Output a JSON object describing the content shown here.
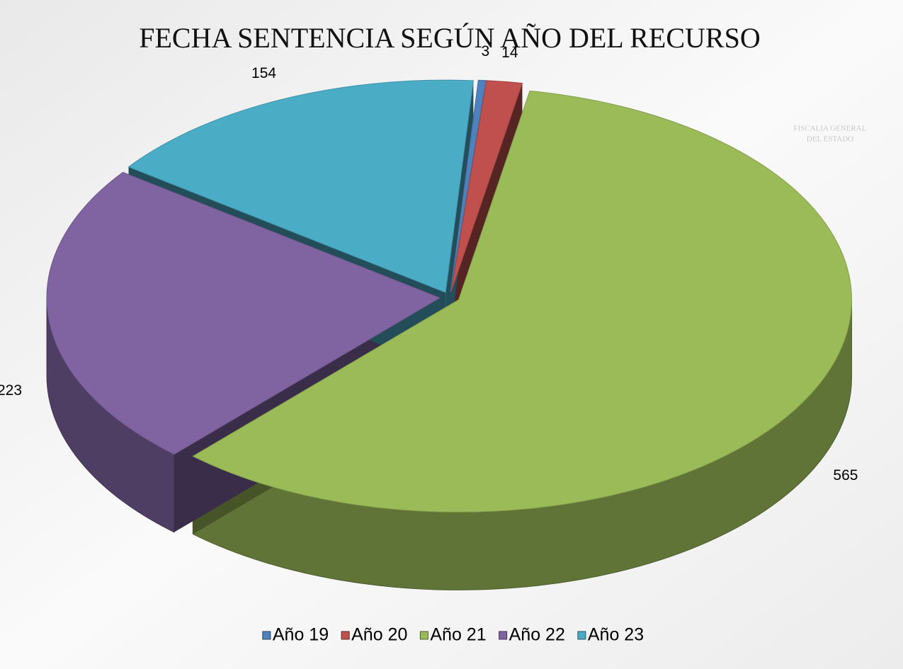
{
  "chart_data": {
    "type": "pie",
    "title": "FECHA SENTENCIA SEGÚN AÑO DEL RECURSO",
    "categories": [
      "Año 19",
      "Año 20",
      "Año 21",
      "Año 22",
      "Año 23"
    ],
    "values": [
      3,
      14,
      565,
      223,
      154
    ],
    "colors": [
      "#4f81bd",
      "#c0504d",
      "#9bbb59",
      "#8064a2",
      "#4bacc6"
    ],
    "legend": "bottom"
  },
  "logo": {
    "lines": [
      "FISCALIA GENERAL",
      "DEL ESTADO"
    ]
  }
}
